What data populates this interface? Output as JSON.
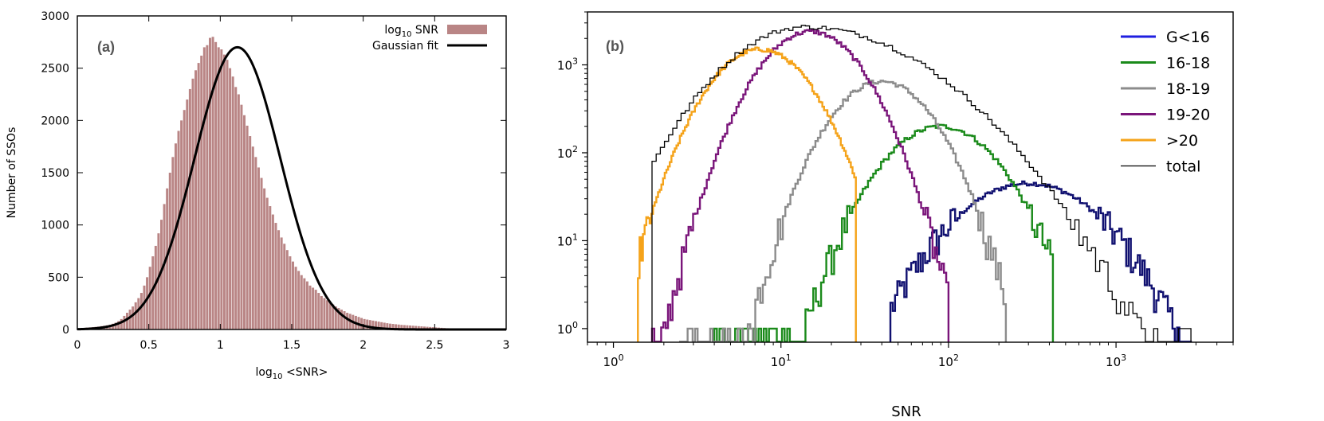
{
  "chart_data": [
    {
      "type": "bar",
      "panel_label": "(a)",
      "xlabel_main": "log",
      "xlabel_sub": "10",
      "xlabel_rest": " <SNR>",
      "ylabel": "Number of SSOs",
      "xlim": [
        0,
        3
      ],
      "ylim": [
        0,
        3000
      ],
      "x_ticks": [
        0,
        0.5,
        1,
        1.5,
        2,
        2.5,
        3
      ],
      "x_tick_labels": [
        "0",
        "0.5",
        "1",
        "1.5",
        "2",
        "2.5",
        "3"
      ],
      "y_ticks": [
        0,
        500,
        1000,
        1500,
        2000,
        2500,
        3000
      ],
      "y_tick_labels": [
        "0",
        "500",
        "1000",
        "1500",
        "2000",
        "2500",
        "3000"
      ],
      "legend_position": "top-right",
      "legend": [
        {
          "main": "log",
          "sub": "10",
          "rest": " SNR",
          "color": "#b98585",
          "kind": "bar"
        },
        {
          "main": "Gaussian fit",
          "sub": "",
          "rest": "",
          "color": "#000000",
          "kind": "line"
        }
      ],
      "histogram": {
        "name": "log10 SNR",
        "color": "#b98585",
        "bin_width": 0.02,
        "x_start": 0,
        "values": [
          10,
          12,
          15,
          18,
          20,
          22,
          25,
          28,
          32,
          36,
          40,
          45,
          55,
          65,
          80,
          100,
          130,
          160,
          190,
          220,
          260,
          300,
          350,
          420,
          500,
          600,
          700,
          800,
          920,
          1050,
          1200,
          1350,
          1500,
          1650,
          1780,
          1900,
          2000,
          2100,
          2200,
          2300,
          2400,
          2480,
          2550,
          2620,
          2700,
          2720,
          2790,
          2800,
          2750,
          2700,
          2680,
          2630,
          2580,
          2500,
          2420,
          2320,
          2250,
          2150,
          2050,
          1950,
          1850,
          1750,
          1650,
          1550,
          1450,
          1350,
          1260,
          1180,
          1100,
          1020,
          950,
          880,
          820,
          760,
          700,
          650,
          600,
          560,
          520,
          490,
          460,
          420,
          400,
          380,
          350,
          320,
          300,
          280,
          260,
          240,
          220,
          205,
          190,
          175,
          160,
          150,
          140,
          130,
          120,
          110,
          100,
          95,
          90,
          85,
          80,
          75,
          70,
          65,
          60,
          56,
          53,
          50,
          47,
          44,
          42,
          40,
          38,
          36,
          34,
          32,
          30,
          28,
          26,
          24,
          22,
          20,
          18,
          16,
          14,
          12,
          10,
          9,
          8,
          7,
          6,
          5,
          4,
          3,
          2,
          2,
          1,
          1
        ]
      },
      "gaussian_fit": {
        "name": "Gaussian fit",
        "amplitude": 2700,
        "mean": 1.12,
        "sigma": 0.3,
        "color": "#000000"
      }
    },
    {
      "type": "line",
      "panel_label": "(b)",
      "xlabel": "SNR",
      "ylabel": "",
      "xscale": "log",
      "yscale": "log",
      "xlim": [
        0.7,
        5000
      ],
      "ylim": [
        0.7,
        4000
      ],
      "x_tick_labels": [
        {
          "base": "10",
          "exp": "0"
        },
        {
          "base": "10",
          "exp": "1"
        },
        {
          "base": "10",
          "exp": "2"
        },
        {
          "base": "10",
          "exp": "3"
        }
      ],
      "y_tick_labels": [
        {
          "base": "10",
          "exp": "0"
        },
        {
          "base": "10",
          "exp": "1"
        },
        {
          "base": "10",
          "exp": "2"
        },
        {
          "base": "10",
          "exp": "3"
        }
      ],
      "legend_position": "top-right",
      "series": [
        {
          "name": "G<16",
          "color": "#1f1fe0",
          "edge_color": "#101070",
          "peak_snr": 300,
          "peak_count": 45,
          "sigma_dex": 0.32,
          "min_snr": 45,
          "max_snr": 2800
        },
        {
          "name": "16-18",
          "color": "#1a8a1a",
          "peak_snr": 90,
          "peak_count": 200,
          "sigma_dex": 0.25,
          "min_snr": 4,
          "max_snr": 420
        },
        {
          "name": "18-19",
          "color": "#8c8c8c",
          "peak_snr": 40,
          "peak_count": 650,
          "sigma_dex": 0.22,
          "min_snr": 2.5,
          "max_snr": 220
        },
        {
          "name": "19-20",
          "color": "#7a157a",
          "peak_snr": 15,
          "peak_count": 2400,
          "sigma_dex": 0.22,
          "min_snr": 1.7,
          "max_snr": 100
        },
        {
          "name": ">20",
          "color": "#f5a31a",
          "peak_snr": 7.5,
          "peak_count": 1500,
          "sigma_dex": 0.22,
          "min_snr": 1.4,
          "max_snr": 28
        },
        {
          "name": "total",
          "color": "#000000",
          "peak_snr": 14,
          "peak_count": 2700,
          "sigma_dex": 0.4,
          "min_snr": 1.7,
          "max_snr": 2800
        }
      ]
    }
  ]
}
